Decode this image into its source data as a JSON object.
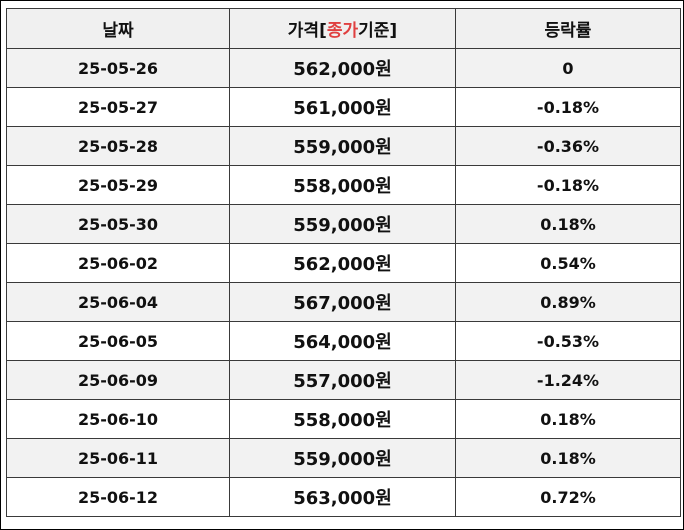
{
  "colors": {
    "price_text": "#c0504d",
    "header_accent": "#e04040",
    "header_bg": "#f0f0f0",
    "odd_row_bg": "#f2f2f2"
  },
  "header": {
    "date": "날짜",
    "price_prefix": "가격[",
    "price_accent": "종가",
    "price_suffix": "기준]",
    "change": "등락률"
  },
  "rows": [
    {
      "date": "25-05-26",
      "price": "562,000원",
      "change": "0"
    },
    {
      "date": "25-05-27",
      "price": "561,000원",
      "change": "-0.18%"
    },
    {
      "date": "25-05-28",
      "price": "559,000원",
      "change": "-0.36%"
    },
    {
      "date": "25-05-29",
      "price": "558,000원",
      "change": "-0.18%"
    },
    {
      "date": "25-05-30",
      "price": "559,000원",
      "change": "0.18%"
    },
    {
      "date": "25-06-02",
      "price": "562,000원",
      "change": "0.54%"
    },
    {
      "date": "25-06-04",
      "price": "567,000원",
      "change": "0.89%"
    },
    {
      "date": "25-06-05",
      "price": "564,000원",
      "change": "-0.53%"
    },
    {
      "date": "25-06-09",
      "price": "557,000원",
      "change": "-1.24%"
    },
    {
      "date": "25-06-10",
      "price": "558,000원",
      "change": "0.18%"
    },
    {
      "date": "25-06-11",
      "price": "559,000원",
      "change": "0.18%"
    },
    {
      "date": "25-06-12",
      "price": "563,000원",
      "change": "0.72%"
    }
  ]
}
